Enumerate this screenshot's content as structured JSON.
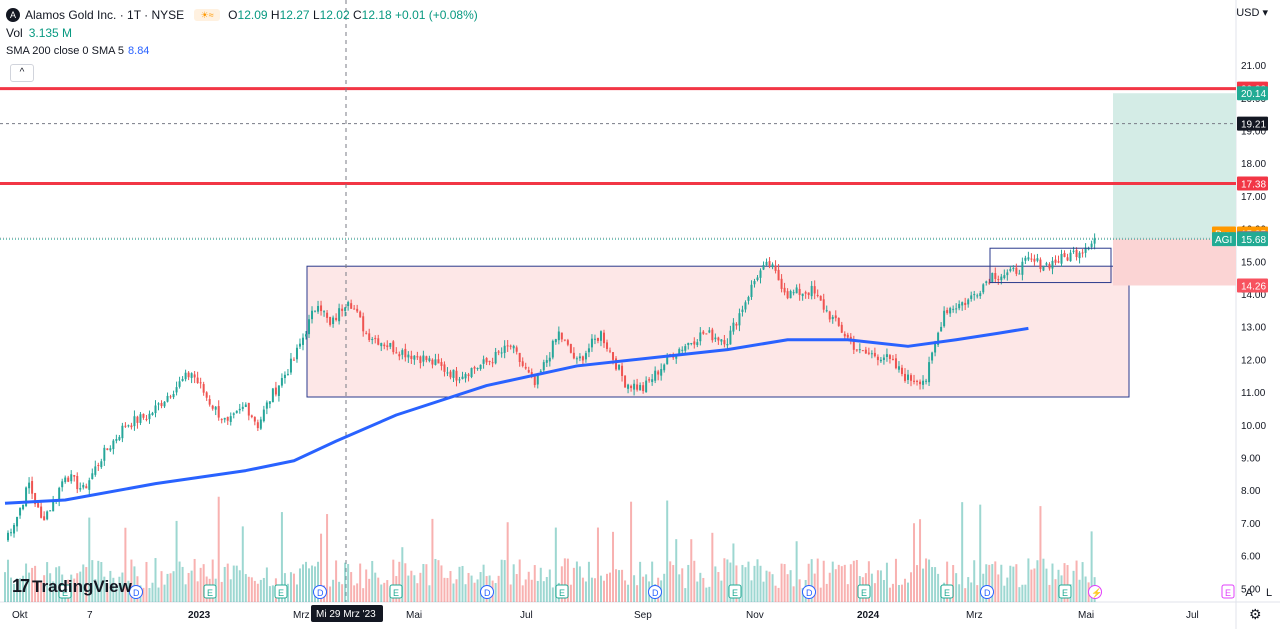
{
  "legend": {
    "logo": "A",
    "symbol": "Alamos Gold Inc. · 1T · NYSE",
    "open_label": "O",
    "open": "12.09",
    "high_label": "H",
    "high": "12.27",
    "low_label": "L",
    "low": "12.02",
    "close_label": "C",
    "close": "12.18",
    "change": "+0.01 (+0.08%)",
    "vol_label": "Vol",
    "vol_value": "3.135 M",
    "sma_label": "SMA 200 close 0 SMA 5",
    "sma_value": "8.84"
  },
  "controls": {
    "collapse": "^",
    "currency": "USD",
    "scale_auto": "A",
    "scale_log": "L",
    "settings": "⚙"
  },
  "brand": {
    "logo_mark": "17",
    "name": "TradingView"
  },
  "colors": {
    "up": "#26a69a",
    "down": "#ef5350",
    "sma": "#2962ff",
    "resistance": "#f23645",
    "range_fill": "#fde3e3",
    "range_border": "#2a3a8c",
    "target_fill": "#d4ece6",
    "stop_fill": "#fbd4d4"
  },
  "chart_data": {
    "type": "candlestick",
    "y_axis": {
      "min": 5,
      "max": 21,
      "ticks": [
        "5.00",
        "6.00",
        "7.00",
        "8.00",
        "9.00",
        "10.00",
        "11.00",
        "12.00",
        "13.00",
        "14.00",
        "15.00",
        "16.00",
        "17.00",
        "18.00",
        "19.00",
        "20.00",
        "21.00"
      ]
    },
    "x_axis": {
      "ticks": [
        "Okt",
        "7",
        "2023",
        "Mrz",
        "Mai",
        "Jul",
        "Sep",
        "Nov",
        "2024",
        "Mrz",
        "Mai",
        "Jul"
      ],
      "crosshair_label": "Mi 29 Mrz '23"
    },
    "price_labels": [
      {
        "label": "",
        "value": "20.28",
        "color": "#f23645"
      },
      {
        "label": "",
        "value": "20.14",
        "color": "#22ab94"
      },
      {
        "label": "",
        "value": "19.21",
        "color": "#131722"
      },
      {
        "label": "",
        "value": "17.38",
        "color": "#f23645"
      },
      {
        "label": "Pre",
        "value": "15.85",
        "color": "#ff9800"
      },
      {
        "label": "",
        "value": "15.71",
        "color": "#787b86"
      },
      {
        "label": "AGI",
        "value": "15.68",
        "color": "#22ab94"
      },
      {
        "label": "",
        "value": "14.26",
        "color": "#f7525f"
      }
    ],
    "horizontal_lines": [
      20.28,
      17.38
    ],
    "dashed_line": 19.21,
    "price_anchors": [
      [
        0,
        6.5
      ],
      [
        4,
        7.2
      ],
      [
        8,
        8.2
      ],
      [
        12,
        7.1
      ],
      [
        16,
        7.6
      ],
      [
        20,
        8.5
      ],
      [
        26,
        8.0
      ],
      [
        32,
        9.0
      ],
      [
        40,
        10.0
      ],
      [
        48,
        10.3
      ],
      [
        56,
        11.1
      ],
      [
        62,
        11.6
      ],
      [
        68,
        10.7
      ],
      [
        74,
        10.0
      ],
      [
        80,
        10.6
      ],
      [
        84,
        10.0
      ],
      [
        88,
        10.8
      ],
      [
        96,
        12.0
      ],
      [
        104,
        13.8
      ],
      [
        108,
        13.0
      ],
      [
        114,
        13.9
      ],
      [
        120,
        12.8
      ],
      [
        130,
        12.3
      ],
      [
        140,
        12.0
      ],
      [
        150,
        11.5
      ],
      [
        160,
        11.9
      ],
      [
        168,
        12.4
      ],
      [
        176,
        11.2
      ],
      [
        184,
        12.8
      ],
      [
        190,
        11.9
      ],
      [
        198,
        12.8
      ],
      [
        206,
        11.3
      ],
      [
        212,
        11.1
      ],
      [
        222,
        12.2
      ],
      [
        232,
        12.8
      ],
      [
        240,
        12.6
      ],
      [
        250,
        14.6
      ],
      [
        254,
        14.9
      ],
      [
        260,
        14.0
      ],
      [
        268,
        14.1
      ],
      [
        276,
        13.1
      ],
      [
        284,
        12.2
      ],
      [
        292,
        12.1
      ],
      [
        300,
        11.4
      ],
      [
        306,
        11.4
      ],
      [
        312,
        13.5
      ],
      [
        320,
        13.8
      ],
      [
        328,
        14.6
      ],
      [
        334,
        14.6
      ],
      [
        340,
        15.0
      ],
      [
        346,
        14.9
      ],
      [
        352,
        15.1
      ],
      [
        358,
        15.4
      ],
      [
        362,
        15.7
      ]
    ],
    "sma200": [
      [
        0,
        7.6
      ],
      [
        20,
        7.7
      ],
      [
        50,
        8.2
      ],
      [
        80,
        8.6
      ],
      [
        96,
        8.9
      ],
      [
        110,
        9.5
      ],
      [
        130,
        10.3
      ],
      [
        160,
        11.2
      ],
      [
        190,
        11.8
      ],
      [
        220,
        12.1
      ],
      [
        240,
        12.3
      ],
      [
        260,
        12.6
      ],
      [
        280,
        12.6
      ],
      [
        300,
        12.4
      ],
      [
        316,
        12.6
      ],
      [
        330,
        12.8
      ],
      [
        340,
        12.95
      ]
    ],
    "volume": {
      "baseline": 0,
      "scale_note": ""
    },
    "events": {
      "earnings": "E",
      "dividends": "D"
    }
  }
}
